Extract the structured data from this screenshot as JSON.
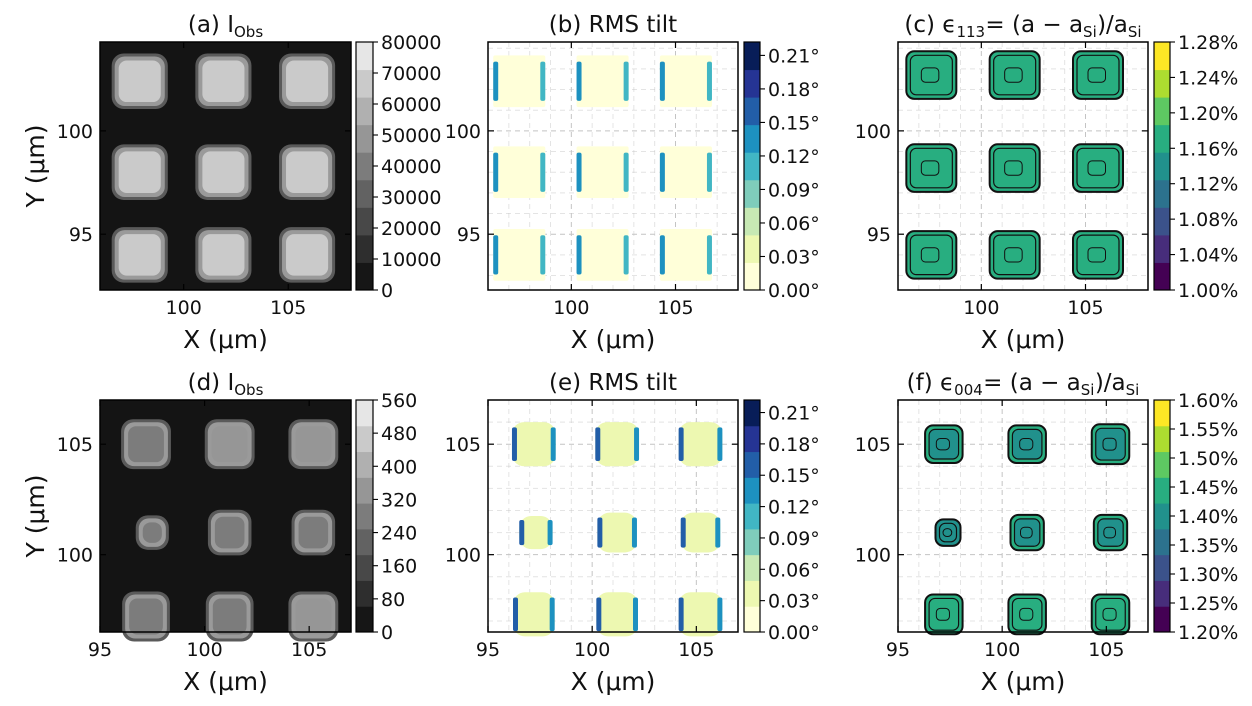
{
  "figure": {
    "palette": {
      "gray": [
        "#161616",
        "#2e2e2e",
        "#484848",
        "#626262",
        "#7c7c7c",
        "#969696",
        "#b0b0b0",
        "#cacaca",
        "#e6e6e6"
      ],
      "ylgnbu": [
        "#ffffd9",
        "#edf8b1",
        "#c7e9b4",
        "#7fcdbb",
        "#41b6c4",
        "#1d91c0",
        "#225ea8",
        "#253494",
        "#081d58"
      ],
      "viridis": [
        "#440154",
        "#472d7b",
        "#3b528b",
        "#2c728e",
        "#21918c",
        "#28ae80",
        "#5ec962",
        "#addc30",
        "#fde725"
      ]
    }
  },
  "chart_data": [
    {
      "type": "heatmap",
      "panel": "a",
      "title": "(a) I",
      "title_sub": "Obs",
      "xlabel": "X (μm)",
      "ylabel": "Y (μm)",
      "xlim": [
        96,
        108
      ],
      "ylim": [
        92.3,
        104.3
      ],
      "xticks": [
        "100",
        "105"
      ],
      "yticks": [
        "95",
        "100"
      ],
      "grid": false,
      "cmap": "gray",
      "features": [
        {
          "x": 97.9,
          "y": 102.4,
          "w": 2.3,
          "h": 2.3,
          "v": 0.88
        },
        {
          "x": 101.9,
          "y": 102.4,
          "w": 2.3,
          "h": 2.3,
          "v": 0.9
        },
        {
          "x": 105.9,
          "y": 102.4,
          "w": 2.3,
          "h": 2.3,
          "v": 0.88
        },
        {
          "x": 97.9,
          "y": 98.0,
          "w": 2.3,
          "h": 2.3,
          "v": 0.88
        },
        {
          "x": 101.9,
          "y": 98.0,
          "w": 2.3,
          "h": 2.3,
          "v": 0.9
        },
        {
          "x": 105.9,
          "y": 98.0,
          "w": 2.3,
          "h": 2.3,
          "v": 0.88
        },
        {
          "x": 97.9,
          "y": 94.0,
          "w": 2.3,
          "h": 2.3,
          "v": 0.88
        },
        {
          "x": 101.9,
          "y": 94.0,
          "w": 2.3,
          "h": 2.3,
          "v": 0.9
        },
        {
          "x": 105.9,
          "y": 94.0,
          "w": 2.3,
          "h": 2.3,
          "v": 0.88
        }
      ],
      "colorbar": {
        "ticks": [
          "0",
          "10000",
          "20000",
          "30000",
          "40000",
          "50000",
          "60000",
          "70000",
          "80000"
        ]
      }
    },
    {
      "type": "heatmap",
      "panel": "b",
      "title": "(b) RMS tilt",
      "xlabel": "X (μm)",
      "ylabel": "",
      "xlim": [
        96,
        108
      ],
      "ylim": [
        92.3,
        104.3
      ],
      "xticks": [
        "100",
        "105"
      ],
      "yticks": [
        "95",
        "100"
      ],
      "grid": true,
      "cmap": "ylgnbu",
      "features": [
        {
          "x": 97.5,
          "y": 102.4,
          "w": 2.5,
          "h": 2.5,
          "v": 0.03
        },
        {
          "x": 101.5,
          "y": 102.4,
          "w": 2.5,
          "h": 2.5,
          "v": 0.03
        },
        {
          "x": 105.5,
          "y": 102.4,
          "w": 2.5,
          "h": 2.5,
          "v": 0.03
        },
        {
          "x": 97.5,
          "y": 98.0,
          "w": 2.5,
          "h": 2.5,
          "v": 0.03
        },
        {
          "x": 101.5,
          "y": 98.0,
          "w": 2.5,
          "h": 2.5,
          "v": 0.03
        },
        {
          "x": 105.5,
          "y": 98.0,
          "w": 2.5,
          "h": 2.5,
          "v": 0.03
        },
        {
          "x": 97.5,
          "y": 94.0,
          "w": 2.5,
          "h": 2.5,
          "v": 0.03
        },
        {
          "x": 101.5,
          "y": 94.0,
          "w": 2.5,
          "h": 2.5,
          "v": 0.03
        },
        {
          "x": 105.5,
          "y": 94.0,
          "w": 2.5,
          "h": 2.5,
          "v": 0.03
        }
      ],
      "edge_value": 0.6,
      "colorbar": {
        "ticks": [
          "0.00°",
          "0.03°",
          "0.06°",
          "0.09°",
          "0.12°",
          "0.15°",
          "0.18°",
          "0.21°"
        ]
      }
    },
    {
      "type": "heatmap",
      "panel": "c",
      "title": "(c) ϵ",
      "title_sub": "113",
      "title_rest": " = (a − a",
      "title_sub2": "Si",
      "title_end": ")/a",
      "title_sub3": "Si",
      "xlabel": "X (μm)",
      "ylabel": "",
      "xlim": [
        96,
        108
      ],
      "ylim": [
        92.3,
        104.3
      ],
      "xticks": [
        "100",
        "105"
      ],
      "yticks": [
        "95",
        "100"
      ],
      "grid": true,
      "cmap": "viridis",
      "features": [
        {
          "x": 97.6,
          "y": 102.7,
          "w": 2.4,
          "h": 2.3,
          "v": 0.65
        },
        {
          "x": 101.6,
          "y": 102.7,
          "w": 2.4,
          "h": 2.3,
          "v": 0.65
        },
        {
          "x": 105.6,
          "y": 102.7,
          "w": 2.4,
          "h": 2.3,
          "v": 0.65
        },
        {
          "x": 97.6,
          "y": 98.2,
          "w": 2.4,
          "h": 2.3,
          "v": 0.65
        },
        {
          "x": 101.6,
          "y": 98.2,
          "w": 2.4,
          "h": 2.3,
          "v": 0.65
        },
        {
          "x": 105.6,
          "y": 98.2,
          "w": 2.4,
          "h": 2.3,
          "v": 0.65
        },
        {
          "x": 97.6,
          "y": 94.0,
          "w": 2.4,
          "h": 2.3,
          "v": 0.65
        },
        {
          "x": 101.6,
          "y": 94.0,
          "w": 2.4,
          "h": 2.3,
          "v": 0.65
        },
        {
          "x": 105.6,
          "y": 94.0,
          "w": 2.4,
          "h": 2.3,
          "v": 0.65
        }
      ],
      "colorbar": {
        "ticks": [
          "1.00%",
          "1.04%",
          "1.08%",
          "1.12%",
          "1.16%",
          "1.20%",
          "1.24%",
          "1.28%"
        ]
      }
    },
    {
      "type": "heatmap",
      "panel": "d",
      "title": "(d) I",
      "title_sub": "Obs",
      "xlabel": "X (μm)",
      "ylabel": "Y (μm)",
      "xlim": [
        95,
        107
      ],
      "ylim": [
        96.5,
        107
      ],
      "xticks": [
        "95",
        "100",
        "105"
      ],
      "yticks": [
        "100",
        "105"
      ],
      "grid": false,
      "cmap": "gray",
      "features": [
        {
          "x": 97.2,
          "y": 105.0,
          "w": 2.0,
          "h": 1.9,
          "v": 0.55
        },
        {
          "x": 101.2,
          "y": 105.0,
          "w": 2.0,
          "h": 1.9,
          "v": 0.6
        },
        {
          "x": 105.2,
          "y": 105.0,
          "w": 2.0,
          "h": 1.9,
          "v": 0.58
        },
        {
          "x": 97.5,
          "y": 101.0,
          "w": 1.2,
          "h": 1.2,
          "v": 0.5
        },
        {
          "x": 101.2,
          "y": 101.0,
          "w": 1.7,
          "h": 1.7,
          "v": 0.52
        },
        {
          "x": 105.2,
          "y": 101.0,
          "w": 1.7,
          "h": 1.7,
          "v": 0.52
        },
        {
          "x": 97.2,
          "y": 97.2,
          "w": 1.9,
          "h": 1.9,
          "v": 0.55
        },
        {
          "x": 101.2,
          "y": 97.2,
          "w": 1.9,
          "h": 1.9,
          "v": 0.55
        },
        {
          "x": 105.2,
          "y": 97.2,
          "w": 2.0,
          "h": 1.9,
          "v": 0.57
        }
      ],
      "colorbar": {
        "ticks": [
          "0",
          "80",
          "160",
          "240",
          "320",
          "400",
          "480",
          "560"
        ]
      }
    },
    {
      "type": "heatmap",
      "panel": "e",
      "title": "(e) RMS tilt",
      "xlabel": "X (μm)",
      "ylabel": "",
      "xlim": [
        95,
        107
      ],
      "ylim": [
        96.5,
        107
      ],
      "xticks": [
        "95",
        "100",
        "105"
      ],
      "yticks": [
        "100",
        "105"
      ],
      "grid": true,
      "cmap": "ylgnbu",
      "features": [
        {
          "x": 97.2,
          "y": 105.0,
          "w": 2.1,
          "h": 2.0,
          "v": 0.08
        },
        {
          "x": 101.2,
          "y": 105.0,
          "w": 2.1,
          "h": 2.0,
          "v": 0.08
        },
        {
          "x": 105.2,
          "y": 105.0,
          "w": 2.1,
          "h": 2.0,
          "v": 0.08
        },
        {
          "x": 97.3,
          "y": 101.0,
          "w": 1.6,
          "h": 1.5,
          "v": 0.08
        },
        {
          "x": 101.2,
          "y": 101.0,
          "w": 1.9,
          "h": 1.8,
          "v": 0.08
        },
        {
          "x": 105.2,
          "y": 101.0,
          "w": 1.9,
          "h": 1.8,
          "v": 0.08
        },
        {
          "x": 97.2,
          "y": 97.3,
          "w": 2.0,
          "h": 2.0,
          "v": 0.08
        },
        {
          "x": 101.2,
          "y": 97.3,
          "w": 2.0,
          "h": 2.0,
          "v": 0.08
        },
        {
          "x": 105.2,
          "y": 97.3,
          "w": 2.1,
          "h": 2.0,
          "v": 0.08
        }
      ],
      "edge_value": 0.75,
      "colorbar": {
        "ticks": [
          "0.00°",
          "0.03°",
          "0.06°",
          "0.09°",
          "0.12°",
          "0.15°",
          "0.18°",
          "0.21°"
        ]
      }
    },
    {
      "type": "heatmap",
      "panel": "f",
      "title": "(f) ϵ",
      "title_sub": "004",
      "title_rest": " = (a − a",
      "title_sub2": "Si",
      "title_end": ")/a",
      "title_sub3": "Si",
      "xlabel": "X (μm)",
      "ylabel": "",
      "xlim": [
        95,
        107
      ],
      "ylim": [
        96.5,
        107
      ],
      "xticks": [
        "95",
        "100",
        "105"
      ],
      "yticks": [
        "100",
        "105"
      ],
      "grid": true,
      "cmap": "viridis",
      "features": [
        {
          "x": 97.2,
          "y": 105.0,
          "w": 1.8,
          "h": 1.7,
          "v": 0.6
        },
        {
          "x": 101.2,
          "y": 105.0,
          "w": 1.8,
          "h": 1.7,
          "v": 0.6
        },
        {
          "x": 105.2,
          "y": 105.0,
          "w": 1.8,
          "h": 1.8,
          "v": 0.6
        },
        {
          "x": 97.4,
          "y": 101.0,
          "w": 1.2,
          "h": 1.2,
          "v": 0.55
        },
        {
          "x": 101.2,
          "y": 101.0,
          "w": 1.6,
          "h": 1.6,
          "v": 0.6
        },
        {
          "x": 105.2,
          "y": 101.0,
          "w": 1.6,
          "h": 1.6,
          "v": 0.6
        },
        {
          "x": 97.2,
          "y": 97.3,
          "w": 1.8,
          "h": 1.8,
          "v": 0.65
        },
        {
          "x": 101.2,
          "y": 97.3,
          "w": 1.8,
          "h": 1.8,
          "v": 0.65
        },
        {
          "x": 105.2,
          "y": 97.3,
          "w": 1.8,
          "h": 1.8,
          "v": 0.65
        }
      ],
      "colorbar": {
        "ticks": [
          "1.20%",
          "1.25%",
          "1.30%",
          "1.35%",
          "1.40%",
          "1.45%",
          "1.50%",
          "1.55%",
          "1.60%"
        ]
      }
    }
  ]
}
